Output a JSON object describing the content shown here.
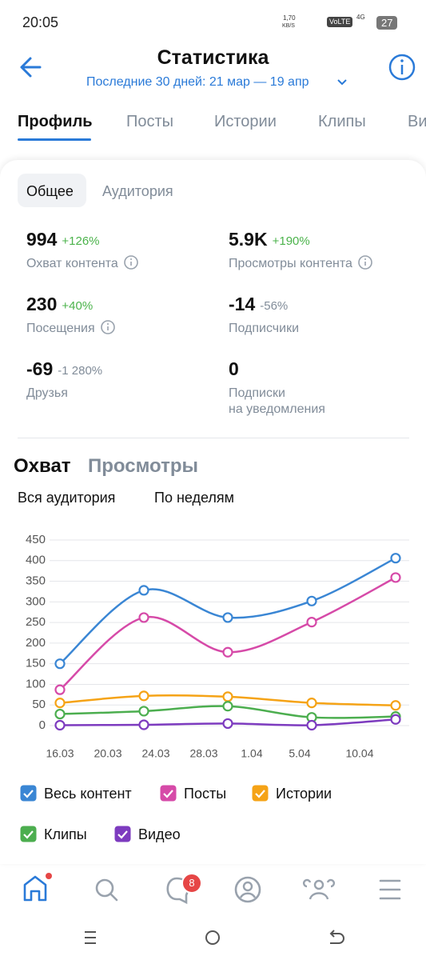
{
  "status_bar": {
    "time": "20:05",
    "speed": "1,70",
    "speed_unit": "KB/S",
    "volte": "VoLTE",
    "network": "4G",
    "battery": "27"
  },
  "header": {
    "title": "Статистика",
    "period": "Последние 30 дней: 21 мар — 19 апр"
  },
  "tabs": [
    "Профиль",
    "Посты",
    "Истории",
    "Клипы",
    "Видео"
  ],
  "subtabs": [
    "Общее",
    "Аудитория"
  ],
  "stats": [
    {
      "value": "994",
      "change": "+126%",
      "label": "Охват контента",
      "info": true
    },
    {
      "value": "5.9K",
      "change": "+190%",
      "label": "Просмотры контента",
      "info": true
    },
    {
      "value": "230",
      "change": "+40%",
      "label": "Посещения",
      "info": true
    },
    {
      "value": "-14",
      "change": "-56%",
      "label": "Подписчики",
      "info": false
    },
    {
      "value": "-69",
      "change": "-1 280%",
      "label": "Друзья",
      "info": false
    },
    {
      "value": "0",
      "label": "Подписки\nна уведомления",
      "info": false
    }
  ],
  "chart_tabs": [
    "Охват",
    "Просмотры"
  ],
  "filters": [
    "Вся аудитория",
    "По неделям"
  ],
  "chart_data": {
    "type": "line",
    "x": [
      76,
      83,
      90,
      97,
      104
    ],
    "xlim": [
      73,
      105
    ],
    "xticks": [
      {
        "value": 76,
        "label": "16.03"
      },
      {
        "value": 80,
        "label": "20.03"
      },
      {
        "value": 84,
        "label": "24.03"
      },
      {
        "value": 88,
        "label": "28.03"
      },
      {
        "value": 92,
        "label": "1.04"
      },
      {
        "value": 96,
        "label": "5.04"
      },
      {
        "value": 101,
        "label": "10.04"
      }
    ],
    "ylim": [
      0,
      450
    ],
    "yticks": [
      0,
      50,
      100,
      150,
      200,
      250,
      300,
      350,
      400,
      450
    ],
    "grid": true,
    "series": [
      {
        "name": "Весь контент",
        "color": "#3a86d4",
        "values": [
          150,
          328,
          262,
          302,
          406
        ]
      },
      {
        "name": "Посты",
        "color": "#d64aa8",
        "values": [
          87,
          262,
          178,
          251,
          359
        ]
      },
      {
        "name": "Истории",
        "color": "#f5a316",
        "values": [
          55,
          72,
          70,
          55,
          49
        ]
      },
      {
        "name": "Клипы",
        "color": "#4cae4f",
        "values": [
          28,
          35,
          47,
          20,
          22
        ]
      },
      {
        "name": "Видео",
        "color": "#7d3bbf",
        "values": [
          1,
          2,
          5,
          1,
          15
        ]
      }
    ]
  },
  "bottom_nav": {
    "badge": "8"
  }
}
